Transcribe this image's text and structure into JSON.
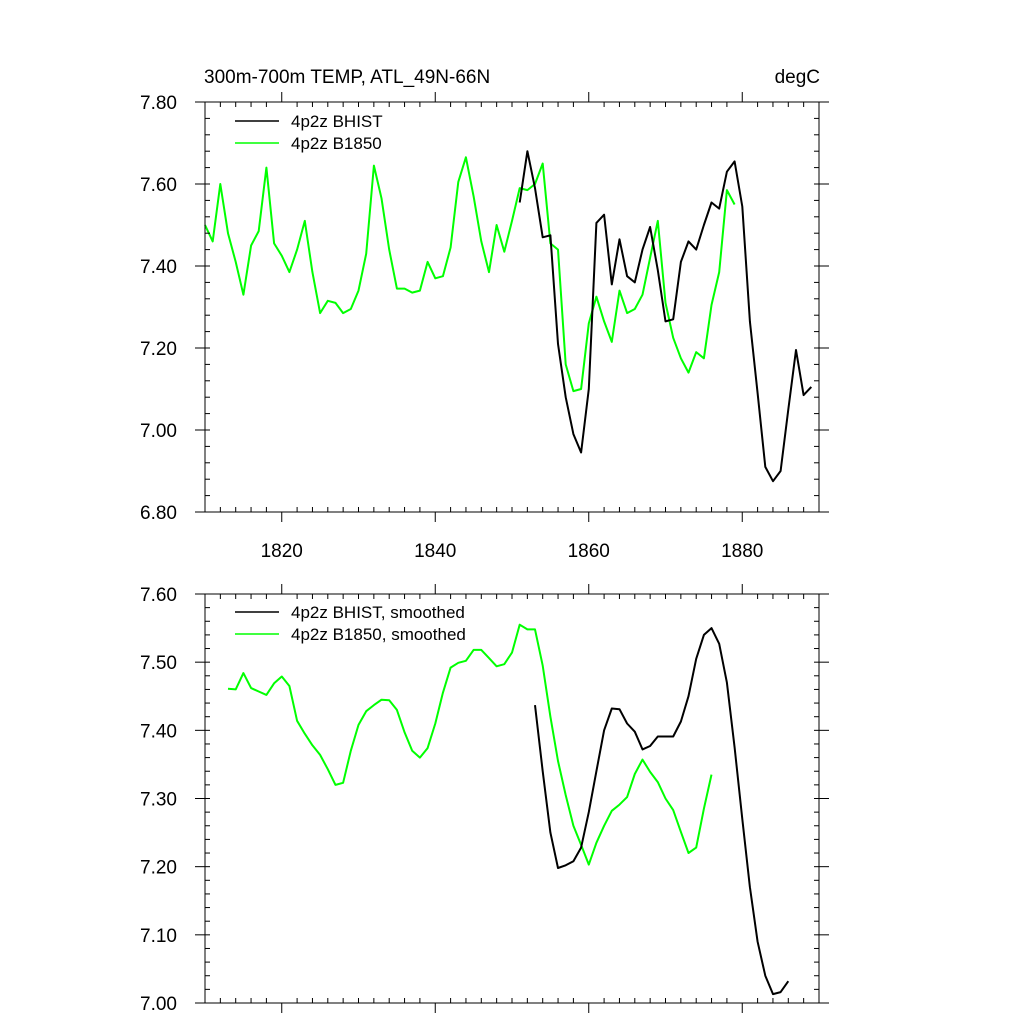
{
  "colors": {
    "bhist": "#000000",
    "b1850": "#00ff00",
    "frame": "#000000"
  },
  "chart_data": [
    {
      "type": "line",
      "title": "300m-700m TEMP, ATL_49N-66N",
      "units": "degC",
      "xlabel": "",
      "ylabel": "",
      "xlim": [
        1810,
        1890
      ],
      "ylim": [
        6.8,
        7.8
      ],
      "xticks": [
        1820,
        1840,
        1860,
        1880
      ],
      "yticks": [
        6.8,
        7.0,
        7.2,
        7.4,
        7.6,
        7.8
      ],
      "ytick_labels": [
        "6.80",
        "7.00",
        "7.20",
        "7.40",
        "7.60",
        "7.80"
      ],
      "xtick_labels": [
        "1820",
        "1840",
        "1860",
        "1880"
      ],
      "legend_position": "top-left",
      "series": [
        {
          "name": "4p2z BHIST",
          "color": "#000000",
          "x": [
            1851,
            1852,
            1853,
            1854,
            1855,
            1856,
            1857,
            1858,
            1859,
            1860,
            1861,
            1862,
            1863,
            1864,
            1865,
            1866,
            1867,
            1868,
            1869,
            1870,
            1871,
            1872,
            1873,
            1874,
            1875,
            1876,
            1877,
            1878,
            1879,
            1880,
            1881,
            1882,
            1883,
            1884,
            1885,
            1886,
            1887,
            1888,
            1889
          ],
          "y": [
            7.555,
            7.68,
            7.59,
            7.47,
            7.475,
            7.21,
            7.08,
            6.99,
            6.945,
            7.1,
            7.505,
            7.525,
            7.355,
            7.465,
            7.375,
            7.36,
            7.44,
            7.495,
            7.39,
            7.265,
            7.27,
            7.41,
            7.46,
            7.44,
            7.5,
            7.555,
            7.54,
            7.63,
            7.655,
            7.545,
            7.265,
            7.09,
            6.91,
            6.875,
            6.9,
            7.05,
            7.195,
            7.085,
            7.105
          ]
        },
        {
          "name": "4p2z B1850",
          "color": "#00ff00",
          "x": [
            1810,
            1811,
            1812,
            1813,
            1814,
            1815,
            1816,
            1817,
            1818,
            1819,
            1820,
            1821,
            1822,
            1823,
            1824,
            1825,
            1826,
            1827,
            1828,
            1829,
            1830,
            1831,
            1832,
            1833,
            1834,
            1835,
            1836,
            1837,
            1838,
            1839,
            1840,
            1841,
            1842,
            1843,
            1844,
            1845,
            1846,
            1847,
            1848,
            1849,
            1850,
            1851,
            1852,
            1853,
            1854,
            1855,
            1856,
            1857,
            1858,
            1859,
            1860,
            1861,
            1862,
            1863,
            1864,
            1865,
            1866,
            1867,
            1868,
            1869,
            1870,
            1871,
            1872,
            1873,
            1874,
            1875,
            1876,
            1877,
            1878,
            1879
          ],
          "y": [
            7.5,
            7.46,
            7.6,
            7.48,
            7.41,
            7.33,
            7.45,
            7.485,
            7.64,
            7.455,
            7.425,
            7.385,
            7.44,
            7.51,
            7.385,
            7.285,
            7.315,
            7.31,
            7.285,
            7.295,
            7.34,
            7.43,
            7.645,
            7.565,
            7.44,
            7.345,
            7.345,
            7.335,
            7.34,
            7.41,
            7.37,
            7.375,
            7.445,
            7.605,
            7.665,
            7.57,
            7.46,
            7.385,
            7.5,
            7.435,
            7.51,
            7.59,
            7.585,
            7.6,
            7.65,
            7.455,
            7.44,
            7.16,
            7.095,
            7.1,
            7.26,
            7.325,
            7.265,
            7.215,
            7.34,
            7.285,
            7.295,
            7.33,
            7.42,
            7.51,
            7.31,
            7.225,
            7.175,
            7.14,
            7.19,
            7.175,
            7.305,
            7.385,
            7.585,
            7.55
          ]
        }
      ]
    },
    {
      "type": "line",
      "title": "",
      "xlabel": "",
      "ylabel": "",
      "xlim": [
        1810,
        1890
      ],
      "ylim": [
        7.0,
        7.6
      ],
      "xticks": [
        1820,
        1840,
        1860,
        1880
      ],
      "yticks": [
        7.0,
        7.1,
        7.2,
        7.3,
        7.4,
        7.5,
        7.6
      ],
      "ytick_labels": [
        "7.00",
        "7.10",
        "7.20",
        "7.30",
        "7.40",
        "7.50",
        "7.60"
      ],
      "legend_position": "top-left",
      "series": [
        {
          "name": "4p2z BHIST, smoothed",
          "color": "#000000",
          "x": [
            1853,
            1854,
            1855,
            1856,
            1857,
            1858,
            1859,
            1860,
            1861,
            1862,
            1863,
            1864,
            1865,
            1866,
            1867,
            1868,
            1869,
            1870,
            1871,
            1872,
            1873,
            1874,
            1875,
            1876,
            1877,
            1878,
            1879,
            1880,
            1881,
            1882,
            1883,
            1884,
            1885,
            1886
          ],
          "y": [
            7.437,
            7.34,
            7.25,
            7.198,
            7.202,
            7.208,
            7.228,
            7.28,
            7.34,
            7.4,
            7.432,
            7.431,
            7.41,
            7.398,
            7.372,
            7.377,
            7.391,
            7.391,
            7.391,
            7.413,
            7.45,
            7.505,
            7.54,
            7.55,
            7.527,
            7.47,
            7.375,
            7.27,
            7.17,
            7.09,
            7.04,
            7.013,
            7.016,
            7.032
          ]
        },
        {
          "name": "4p2z B1850, smoothed",
          "color": "#00ff00",
          "x": [
            1813,
            1814,
            1815,
            1816,
            1817,
            1818,
            1819,
            1820,
            1821,
            1822,
            1823,
            1824,
            1825,
            1826,
            1827,
            1828,
            1829,
            1830,
            1831,
            1832,
            1833,
            1834,
            1835,
            1836,
            1837,
            1838,
            1839,
            1840,
            1841,
            1842,
            1843,
            1844,
            1845,
            1846,
            1847,
            1848,
            1849,
            1850,
            1851,
            1852,
            1853,
            1854,
            1855,
            1856,
            1857,
            1858,
            1859,
            1860,
            1861,
            1862,
            1863,
            1864,
            1865,
            1866,
            1867,
            1868,
            1869,
            1870,
            1871,
            1872,
            1873,
            1874,
            1875,
            1876
          ],
          "y": [
            7.461,
            7.46,
            7.484,
            7.462,
            7.457,
            7.452,
            7.469,
            7.479,
            7.465,
            7.414,
            7.395,
            7.378,
            7.364,
            7.343,
            7.32,
            7.323,
            7.37,
            7.408,
            7.428,
            7.437,
            7.445,
            7.444,
            7.43,
            7.397,
            7.37,
            7.36,
            7.374,
            7.41,
            7.455,
            7.492,
            7.499,
            7.502,
            7.518,
            7.518,
            7.506,
            7.494,
            7.497,
            7.514,
            7.555,
            7.548,
            7.548,
            7.495,
            7.42,
            7.355,
            7.305,
            7.26,
            7.232,
            7.203,
            7.235,
            7.26,
            7.282,
            7.291,
            7.302,
            7.336,
            7.357,
            7.339,
            7.324,
            7.3,
            7.283,
            7.251,
            7.22,
            7.228,
            7.285,
            7.335
          ]
        }
      ]
    }
  ]
}
